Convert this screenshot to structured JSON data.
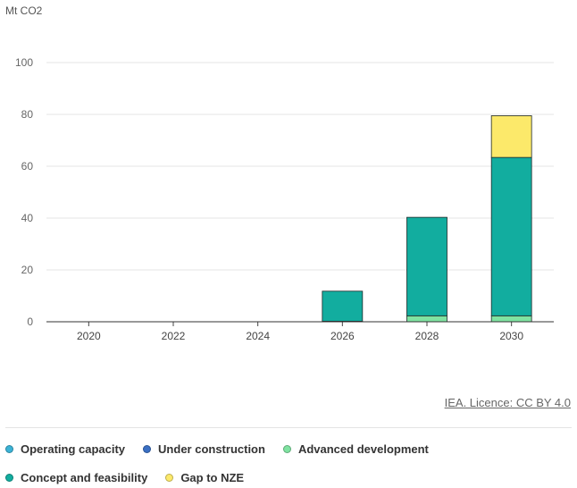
{
  "chart_data": {
    "type": "bar",
    "stacked": true,
    "ylabel": "Mt CO2",
    "ylim": [
      0,
      100
    ],
    "yticks": [
      0,
      20,
      40,
      60,
      80,
      100
    ],
    "categories": [
      "2020",
      "2022",
      "2024",
      "2026",
      "2028",
      "2030"
    ],
    "series": [
      {
        "name": "Operating capacity",
        "color": "#3bb3d6",
        "values": [
          0,
          0,
          0,
          0,
          0,
          0
        ]
      },
      {
        "name": "Under construction",
        "color": "#3a70c4",
        "values": [
          0,
          0,
          0,
          0,
          0,
          0
        ]
      },
      {
        "name": "Advanced development",
        "color": "#7fe3a1",
        "values": [
          0,
          0,
          0,
          0.2,
          2.3,
          2.3
        ]
      },
      {
        "name": "Concept and feasibility",
        "color": "#12ad9f",
        "values": [
          0,
          0,
          0,
          11.6,
          38.0,
          61.1
        ]
      },
      {
        "name": "Gap to NZE",
        "color": "#fce96a",
        "values": [
          0,
          0,
          0,
          0,
          0,
          16.1
        ]
      }
    ],
    "grid": true,
    "legend_position": "bottom"
  },
  "credit": "IEA. Licence: CC BY 4.0"
}
